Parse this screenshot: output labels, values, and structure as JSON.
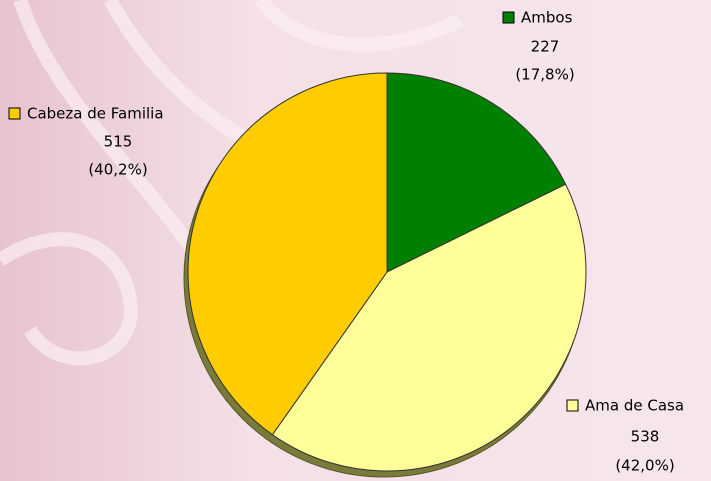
{
  "chart_data": {
    "type": "pie",
    "categories": [
      "Ambos",
      "Ama de Casa",
      "Cabeza de Familia"
    ],
    "values": [
      227,
      538,
      515
    ],
    "percent_labels": [
      "(17,8%)",
      "(42,0%)",
      "(40,2%)"
    ],
    "colors": [
      "#008000",
      "#ffff99",
      "#ffcc00"
    ]
  }
}
